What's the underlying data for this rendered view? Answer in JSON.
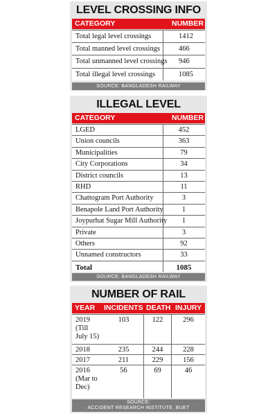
{
  "level_crossing_info": {
    "title": "LEVEL CROSSING INFO",
    "header": {
      "category": "CATEGORY",
      "number": "NUMBER"
    },
    "rows": [
      {
        "label": "Total legal level crossings",
        "value": "1412"
      },
      {
        "label": "Total manned level crossings",
        "value": "466"
      },
      {
        "label": "Total unmanned level crossings",
        "value": "946"
      },
      {
        "label": "Total illegal level crossings",
        "value": "1085"
      }
    ],
    "source": "SOURCE: BANGLADESH RAILWAY"
  },
  "illegal_level_crossing": {
    "title": "ILLEGAL LEVEL CROSSING",
    "header": {
      "category": "CATEGORY",
      "number": "NUMBER"
    },
    "rows": [
      {
        "label": "LGED",
        "value": "452"
      },
      {
        "label": "Union councils",
        "value": "363"
      },
      {
        "label": "Municipalities",
        "value": "79"
      },
      {
        "label": "City Corporations",
        "value": "34"
      },
      {
        "label": "District councils",
        "value": "13"
      },
      {
        "label": "RHD",
        "value": "11"
      },
      {
        "label": "Chattogram Port Authority",
        "value": "3"
      },
      {
        "label": "Benapole Land Port Authority",
        "value": "1"
      },
      {
        "label": "Joypurhat Sugar Mill Authority",
        "value": "1"
      },
      {
        "label": "Private",
        "value": "3"
      },
      {
        "label": "Others",
        "value": "92"
      },
      {
        "label": "Unnamed constructors",
        "value": "33"
      }
    ],
    "total": {
      "label": "Total",
      "value": "1085"
    },
    "source": "SOURCE: BANGLADESH RAILWAY"
  },
  "rail_fatalities": {
    "title": "NUMBER OF RAIL FATALITIES",
    "header": {
      "year": "YEAR",
      "incidents": "INCIDENTS",
      "death": "DEATH",
      "injury": "INJURY"
    },
    "rows": [
      {
        "year_lines": [
          "2019",
          "(Till",
          "July 15)"
        ],
        "incidents": "103",
        "death": "122",
        "injury": "296"
      },
      {
        "year_lines": [
          "2018"
        ],
        "incidents": "235",
        "death": "244",
        "injury": "228"
      },
      {
        "year_lines": [
          "2017"
        ],
        "incidents": "211",
        "death": "229",
        "injury": "156"
      },
      {
        "year_lines": [
          "2016",
          "(Mar to",
          "Dec)"
        ],
        "incidents": "56",
        "death": "69",
        "injury": "46"
      }
    ],
    "source_line1": "SOURCE:",
    "source_line2": "ACCIDENT RESEARCH INSTITUTE, BUET"
  },
  "chart_data": [
    {
      "type": "table",
      "title": "LEVEL CROSSING INFO",
      "columns": [
        "CATEGORY",
        "NUMBER"
      ],
      "rows": [
        [
          "Total legal level crossings",
          1412
        ],
        [
          "Total manned level crossings",
          466
        ],
        [
          "Total unmanned level crossings",
          946
        ],
        [
          "Total illegal level crossings",
          1085
        ]
      ]
    },
    {
      "type": "table",
      "title": "ILLEGAL LEVEL CROSSING",
      "columns": [
        "CATEGORY",
        "NUMBER"
      ],
      "rows": [
        [
          "LGED",
          452
        ],
        [
          "Union councils",
          363
        ],
        [
          "Municipalities",
          79
        ],
        [
          "City Corporations",
          34
        ],
        [
          "District councils",
          13
        ],
        [
          "RHD",
          11
        ],
        [
          "Chattogram Port Authority",
          3
        ],
        [
          "Benapole Land Port Authority",
          1
        ],
        [
          "Joypurhat Sugar Mill Authority",
          1
        ],
        [
          "Private",
          3
        ],
        [
          "Others",
          92
        ],
        [
          "Unnamed constructors",
          33
        ],
        [
          "Total",
          1085
        ]
      ]
    },
    {
      "type": "table",
      "title": "NUMBER OF RAIL FATALITIES",
      "columns": [
        "YEAR",
        "INCIDENTS",
        "DEATH",
        "INJURY"
      ],
      "rows": [
        [
          "2019 (Till July 15)",
          103,
          122,
          296
        ],
        [
          "2018",
          235,
          244,
          228
        ],
        [
          "2017",
          211,
          229,
          156
        ],
        [
          "2016 (Mar to Dec)",
          56,
          69,
          46
        ]
      ]
    }
  ]
}
